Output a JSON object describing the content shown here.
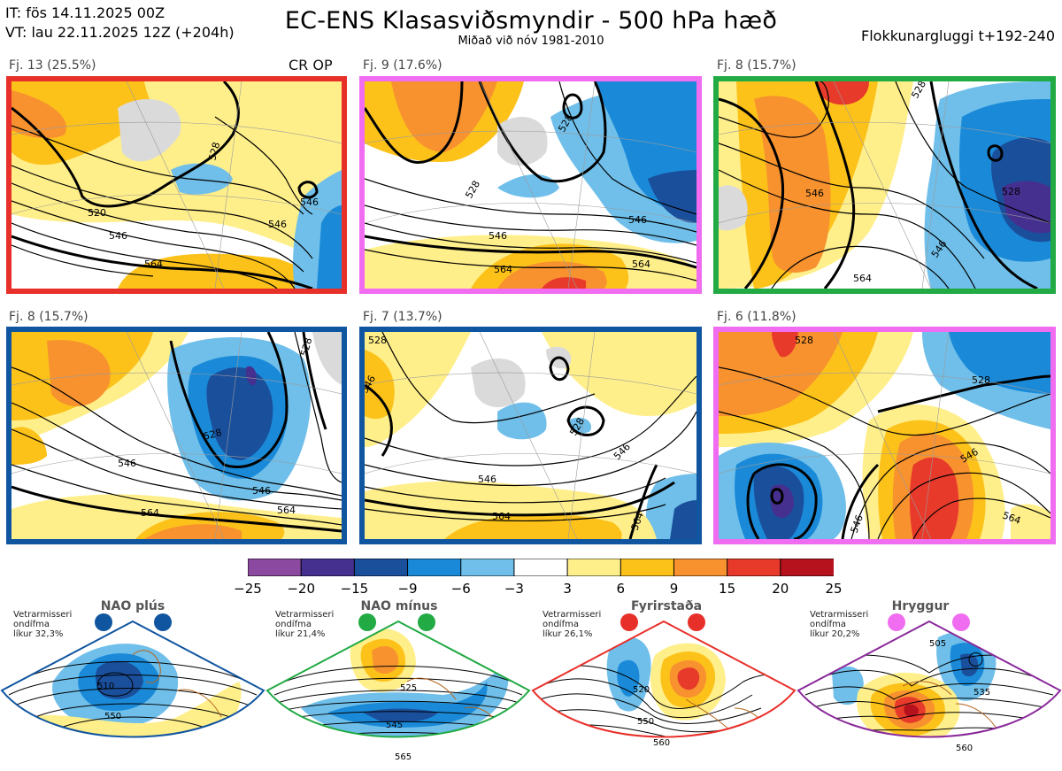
{
  "header": {
    "it_line": "IT: fös 14.11.2025 00Z",
    "vt_line": "VT: lau 22.11.2025 12Z  (+204h)",
    "title": "EC-ENS Klasasviðsmyndir - 500 hPa hæð",
    "subtitle": "Miðað við nóv 1981-2010",
    "window": "Flokkunargluggi t+192-240",
    "crop_label": "CR OP"
  },
  "panels": [
    {
      "label": "Fj. 13 (25.5%)",
      "border_color": "#e8302a",
      "contours": [
        "520",
        "546",
        "564",
        "528",
        "546",
        "546"
      ]
    },
    {
      "label": "Fj. 9 (17.6%)",
      "border_color": "#f06cf0",
      "contours": [
        "528",
        "546",
        "564",
        "564",
        "546",
        "528"
      ]
    },
    {
      "label": "Fj. 8 (15.7%)",
      "border_color": "#22aa44",
      "contours": [
        "546",
        "528",
        "546",
        "564",
        "528"
      ]
    },
    {
      "label": "Fj. 8 (15.7%)",
      "border_color": "#1055a0",
      "contours": [
        "546",
        "564",
        "528",
        "546",
        "564",
        "528"
      ]
    },
    {
      "label": "Fj. 7 (13.7%)",
      "border_color": "#1055a0",
      "contours": [
        "528",
        "546",
        "564",
        "528",
        "546",
        "564",
        "546"
      ]
    },
    {
      "label": "Fj. 6 (11.8%)",
      "border_color": "#f06cf0",
      "contours": [
        "528",
        "546",
        "546",
        "564",
        "528"
      ]
    }
  ],
  "colorbar": {
    "ticks": [
      "−25",
      "−20",
      "−15",
      "−9",
      "−6",
      "−3",
      "3",
      "6",
      "9",
      "15",
      "20",
      "25"
    ],
    "colors": [
      "#8b4a9f",
      "#45308f",
      "#1a4f9c",
      "#1a8ad8",
      "#6fbfea",
      "#ffffff",
      "#ffef8a",
      "#fcc21a",
      "#f7922f",
      "#e83a2b",
      "#b5121e"
    ]
  },
  "regimes": [
    {
      "name": "NAO plús",
      "note": [
        "Vetrarmisseri",
        "ondífma",
        "líkur 32,3%"
      ],
      "color": "#1055a0",
      "contours": [
        "510",
        "550"
      ]
    },
    {
      "name": "NAO mínus",
      "note": [
        "Vetrarmisseri",
        "ondífma",
        "líkur 21,4%"
      ],
      "color": "#22aa44",
      "contours": [
        "525",
        "545",
        "565"
      ]
    },
    {
      "name": "Fyrirstaða",
      "note": [
        "Vetrarmisseri",
        "ondífma",
        "líkur 26,1%"
      ],
      "color": "#e8302a",
      "contours": [
        "520",
        "550",
        "560"
      ]
    },
    {
      "name": "Hryggur",
      "note": [
        "Vetrarmisseri",
        "ondífma",
        "líkur 20,2%"
      ],
      "color": "#f06cf0",
      "border": "#8a2a9a",
      "contours": [
        "505",
        "535",
        "560"
      ]
    }
  ]
}
